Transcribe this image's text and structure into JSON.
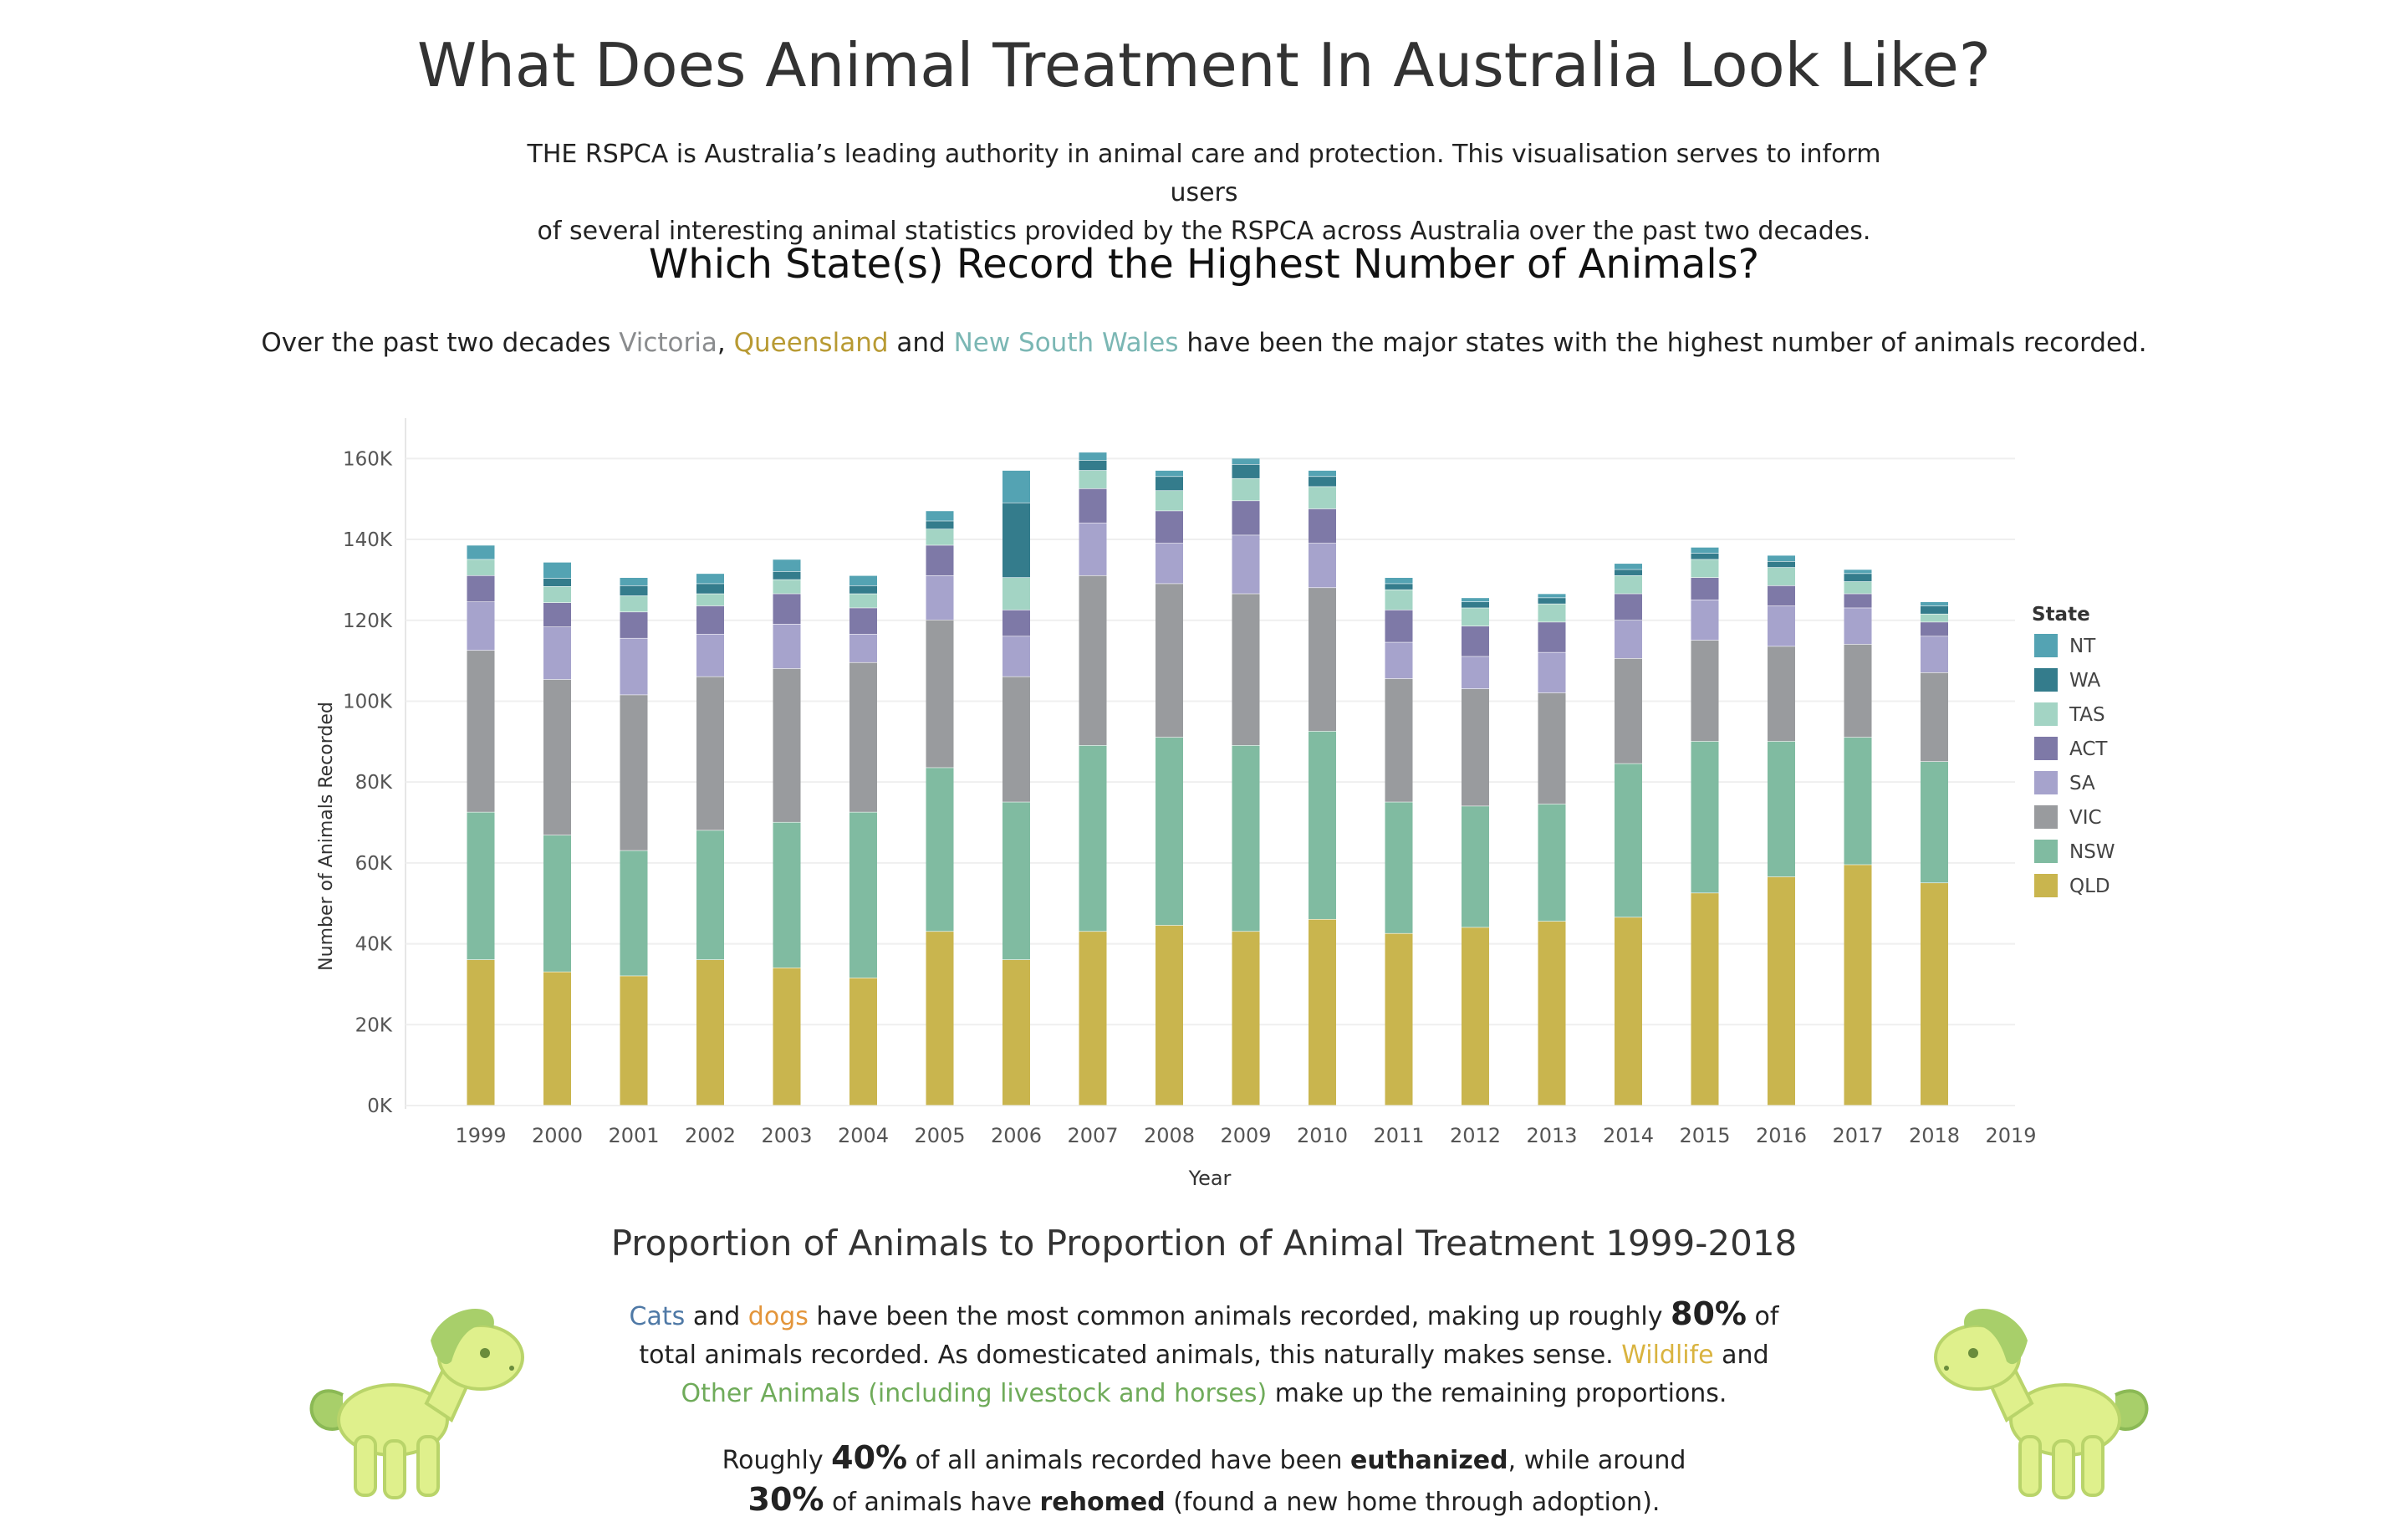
{
  "header": {
    "title": "What Does Animal Treatment In Australia Look Like?",
    "intro_line1": "THE RSPCA is Australia’s leading authority in animal care and protection. This visualisation serves to inform users",
    "intro_line2": "of several interesting animal statistics provided by the RSPCA across Australia over the past two decades."
  },
  "chart_section": {
    "title": "Which State(s) Record the Highest Number of Animals?",
    "desc_pre": "Over the past two decades ",
    "desc_vic": "Victoria",
    "desc_comma": ", ",
    "desc_qld": "Queensland",
    "desc_and": " and ",
    "desc_nsw": "New South Wales",
    "desc_post": " have been the major states with the highest number of animals recorded."
  },
  "colors": {
    "NT": "#54a3b3",
    "WA": "#347c8c",
    "TAS": "#a3d4c4",
    "ACT": "#7e79a7",
    "SA": "#a6a3cc",
    "VIC": "#999b9e",
    "NSW": "#80bba1",
    "QLD": "#c9b54e"
  },
  "chart_data": {
    "type": "bar",
    "stacked": true,
    "xlabel": "Year",
    "ylabel": "Number of Animals Recorded",
    "ylim": [
      0,
      170000
    ],
    "yticks": [
      0,
      20000,
      40000,
      60000,
      80000,
      100000,
      120000,
      140000,
      160000
    ],
    "ytick_labels": [
      "0K",
      "20K",
      "40K",
      "60K",
      "80K",
      "100K",
      "120K",
      "140K",
      "160K"
    ],
    "categories": [
      "1999",
      "2000",
      "2001",
      "2002",
      "2003",
      "2004",
      "2005",
      "2006",
      "2007",
      "2008",
      "2009",
      "2010",
      "2011",
      "2012",
      "2013",
      "2014",
      "2015",
      "2016",
      "2017",
      "2018",
      "2019"
    ],
    "legend_title": "State",
    "legend_position": "right",
    "grid": true,
    "series": [
      {
        "name": "QLD",
        "values": [
          36000,
          33000,
          32000,
          36000,
          34000,
          31500,
          43000,
          36000,
          43000,
          44500,
          43000,
          46000,
          42500,
          44000,
          45500,
          46500,
          52500,
          56500,
          59500,
          55000,
          0
        ]
      },
      {
        "name": "NSW",
        "values": [
          36500,
          33800,
          31000,
          32000,
          36000,
          41000,
          40500,
          39000,
          46000,
          46500,
          46000,
          46500,
          32500,
          30000,
          29000,
          38000,
          37500,
          33500,
          31500,
          30000,
          0
        ]
      },
      {
        "name": "VIC",
        "values": [
          40000,
          38500,
          38500,
          38000,
          38000,
          37000,
          36500,
          31000,
          42000,
          38000,
          37500,
          35500,
          30500,
          29000,
          27500,
          26000,
          25000,
          23500,
          23000,
          22000,
          0
        ]
      },
      {
        "name": "SA",
        "values": [
          12000,
          13000,
          14000,
          10500,
          11000,
          7000,
          11000,
          10000,
          13000,
          10000,
          14500,
          11000,
          9000,
          8000,
          10000,
          9500,
          10000,
          10000,
          9000,
          9000,
          0
        ]
      },
      {
        "name": "ACT",
        "values": [
          6500,
          6000,
          6500,
          7000,
          7500,
          6500,
          7500,
          6500,
          8500,
          8000,
          8500,
          8500,
          8000,
          7500,
          7500,
          6500,
          5500,
          5000,
          3500,
          3500,
          0
        ]
      },
      {
        "name": "TAS",
        "values": [
          4000,
          4000,
          4000,
          3000,
          3500,
          3500,
          4000,
          8000,
          4500,
          5000,
          5500,
          5500,
          5000,
          4500,
          4500,
          4500,
          4500,
          4500,
          3000,
          2000,
          0
        ]
      },
      {
        "name": "WA",
        "values": [
          0,
          2000,
          2500,
          2500,
          2000,
          2000,
          2000,
          18500,
          2500,
          3500,
          3500,
          2500,
          1500,
          1500,
          1500,
          1500,
          1500,
          1500,
          2000,
          2000,
          0
        ]
      },
      {
        "name": "NT",
        "values": [
          3500,
          4000,
          2000,
          2500,
          3000,
          2500,
          2500,
          8000,
          2000,
          1500,
          1500,
          1500,
          1500,
          1000,
          1000,
          1500,
          1500,
          1500,
          1000,
          1000,
          0
        ]
      }
    ]
  },
  "section2": {
    "title": "Proportion of Animals to Proportion of Animal Treatment 1999-2018",
    "cats": "Cats",
    "and1": " and ",
    "dogs": "dogs",
    "p1_a": " have been the most common animals recorded, making up roughly ",
    "pct80": "80%",
    "p1_b": " of total animals recorded. As domesticated animals, this naturally makes sense. ",
    "wildlife": "Wildlife",
    "and2": " and ",
    "other": "Other Animals",
    "other_sub": " (including livestock and horses)",
    "p1_c": " make up the remaining proportions.",
    "p2_a": "Roughly ",
    "pct40": "40%",
    "p2_b": " of all animals recorded have been ",
    "euthanized": "euthanized",
    "p2_c": ", while around ",
    "pct30": "30%",
    "p2_d": " of animals have ",
    "rehomed": "rehomed",
    "p2_e": " (found a new home through adoption)."
  }
}
